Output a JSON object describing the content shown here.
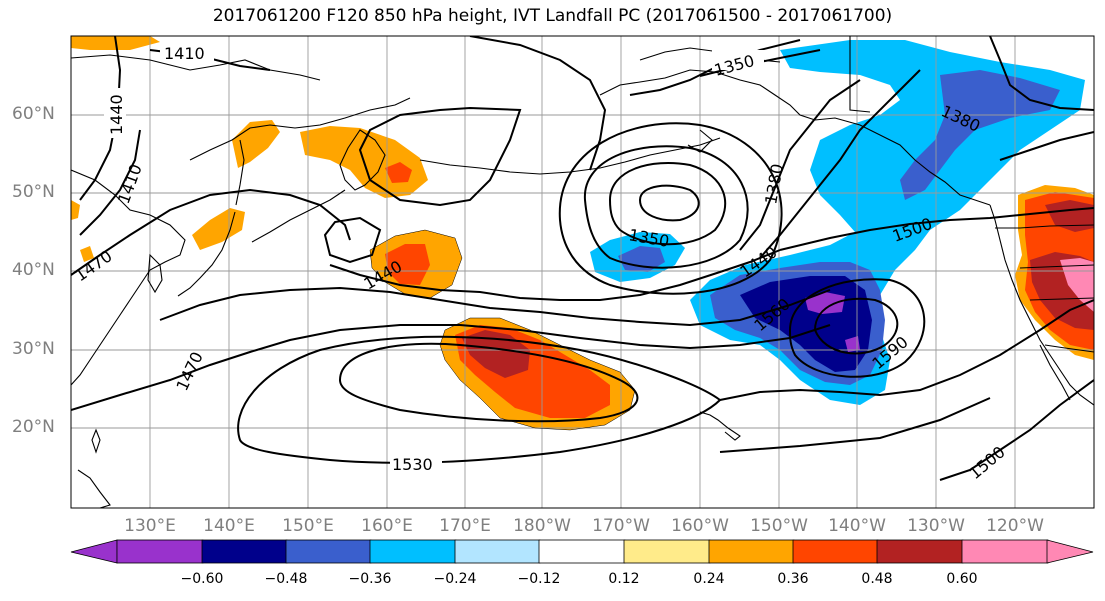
{
  "title": "2017061200 F120 850 hPa height, IVT Landfall PC (2017061500 - 2017061700)",
  "axes": {
    "lat_labels": [
      "60°N",
      "50°N",
      "40°N",
      "30°N",
      "20°N"
    ],
    "lon_labels": [
      "130°E",
      "140°E",
      "150°E",
      "160°E",
      "170°E",
      "180°W",
      "170°W",
      "160°W",
      "150°W",
      "140°W",
      "130°W",
      "120°W"
    ]
  },
  "contour_labels": [
    "1410",
    "1440",
    "1410",
    "1470",
    "1350",
    "1380",
    "1380",
    "1350",
    "1440",
    "1440",
    "1500",
    "1560",
    "1590",
    "1470",
    "1530",
    "1500"
  ],
  "colorbar": {
    "ticks": [
      "−0.60",
      "−0.48",
      "−0.36",
      "−0.24",
      "−0.12",
      "0.12",
      "0.24",
      "0.36",
      "0.48",
      "0.60"
    ],
    "colors": [
      "#9932cc",
      "#00008b",
      "#3a5fcd",
      "#00bfff",
      "#b2e5ff",
      "#ffffff",
      "#ffeb8a",
      "#ffa500",
      "#ff4500",
      "#b22222",
      "#ff88b4"
    ]
  },
  "colors": {
    "blue_strong": "#00008b",
    "blue_mid": "#3a5fcd",
    "blue_light": "#00bfff",
    "purple": "#9932cc",
    "orange": "#ffa500",
    "red_orange": "#ff4500",
    "dark_red": "#b22222",
    "pink": "#ff88b4"
  }
}
